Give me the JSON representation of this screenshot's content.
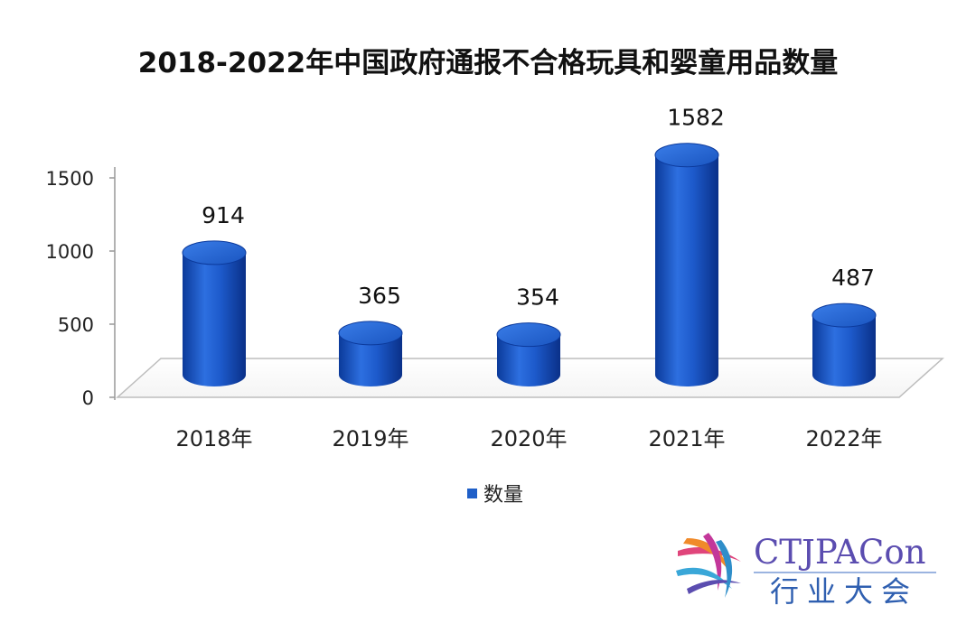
{
  "chart_data": {
    "type": "bar",
    "title": "2018-2022年中国政府通报不合格玩具和婴童用品数量",
    "categories": [
      "2018年",
      "2019年",
      "2020年",
      "2021年",
      "2022年"
    ],
    "series": [
      {
        "name": "数量",
        "values": [
          914,
          365,
          354,
          1582,
          487
        ],
        "color": "#1f5fc8"
      }
    ],
    "data_labels": [
      "914",
      "365",
      "354",
      "1582",
      "487"
    ],
    "yticks": [
      "0",
      "500",
      "1000",
      "1500"
    ],
    "ylim": [
      0,
      1500
    ],
    "grid": false,
    "legend_position": "bottom",
    "style": "3d-cylinder"
  },
  "logo": {
    "name_en": "CTJPACon",
    "name_cn": "行业大会",
    "colors": [
      "#e0457b",
      "#f08a2a",
      "#3aa7d8",
      "#5b4db0"
    ]
  }
}
